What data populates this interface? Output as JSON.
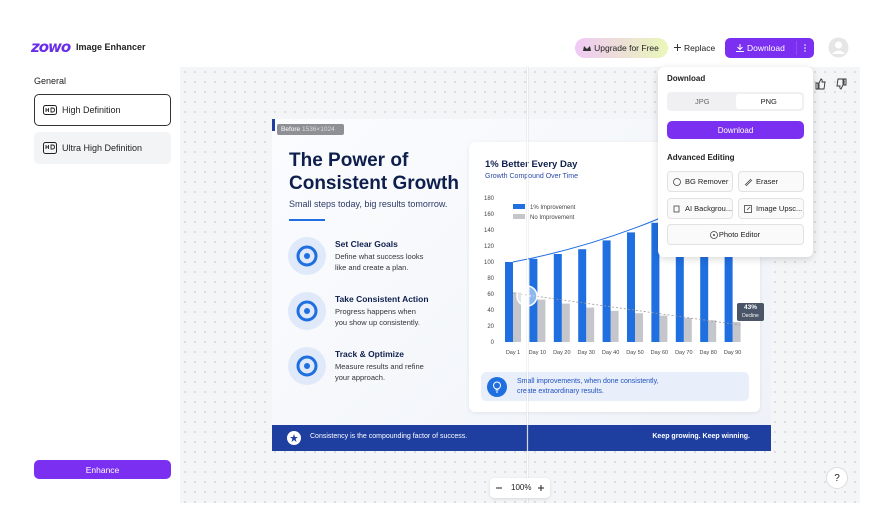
{
  "header": {
    "logo": "zowo",
    "app_name": "Image Enhancer",
    "upgrade": "Upgrade for Free",
    "replace": "Replace",
    "download": "Download"
  },
  "sidebar": {
    "section": "General",
    "options": [
      "High Definition",
      "Ultra High Definition"
    ],
    "selected": 0,
    "enhance": "Enhance"
  },
  "canvas": {
    "before_label": "Before",
    "dimensions": "1536×1024",
    "zoom": "100%",
    "help": "?"
  },
  "infographic": {
    "title_lines": [
      "The Power of",
      "Consistent Growth"
    ],
    "subtitle": "Small steps today, big results tomorrow.",
    "steps": [
      {
        "heading": "Set Clear Goals",
        "lines": [
          "Define what success looks",
          "like and create a plan."
        ]
      },
      {
        "heading": "Take Consistent Action",
        "lines": [
          "Progress happens when",
          "you show up consistently."
        ]
      },
      {
        "heading": "Track & Optimize",
        "lines": [
          "Measure results and refine",
          "your approach."
        ]
      }
    ],
    "chart": {
      "title": "1% Better Every Day",
      "subtitle": "Growth Compound Over Time",
      "categories": [
        "Day 1",
        "Day 10",
        "Day 20",
        "Day 30",
        "Day 40",
        "Day 50",
        "Day 60",
        "Day 70",
        "Day 80",
        "Day 90"
      ],
      "series": [
        {
          "name": "1% Improvement",
          "color": "#1f6fe0",
          "values": [
            100,
            104,
            110,
            116,
            127,
            137,
            149,
            160,
            172,
            180
          ]
        },
        {
          "name": "No Improvement",
          "color": "#c4c6cc",
          "values": [
            62,
            53,
            48,
            43,
            39,
            36,
            33,
            30,
            27,
            25
          ]
        }
      ],
      "ylim": [
        0,
        180
      ],
      "yticks": [
        0,
        20,
        40,
        60,
        80,
        100,
        120,
        140,
        160,
        180
      ],
      "badge": {
        "value": "43%",
        "label": "Decline"
      }
    },
    "tip_lines": [
      "Small improvements, when done consistently,",
      "create extraordinary results."
    ],
    "footer_left": "Consistency is the compounding factor of success.",
    "footer_right": "Keep growing. Keep winning."
  },
  "download_menu": {
    "title": "Download",
    "formats": [
      "JPG",
      "PNG"
    ],
    "selected_format": 1,
    "button": "Download",
    "advanced_title": "Advanced Editing",
    "tools": [
      "BG Remover",
      "Eraser",
      "AI Backgrou...",
      "Image Upsc...",
      "Photo Editor"
    ]
  }
}
